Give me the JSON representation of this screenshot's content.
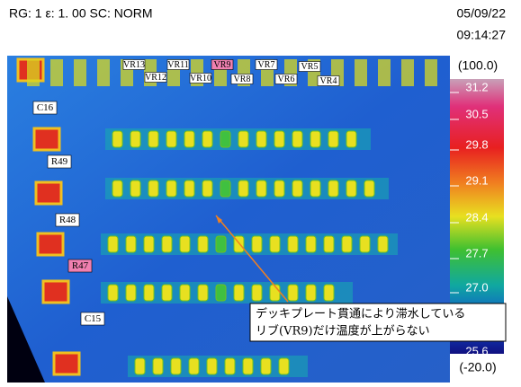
{
  "header": {
    "status": "RG: 1  ε: 1. 00  SC: NORM",
    "date": "05/09/22",
    "time": "09:14:27"
  },
  "scale": {
    "top": "(100.0)",
    "labels": [
      "31.2",
      "30.5",
      "29.8",
      "29.1",
      "28.4",
      "27.7",
      "27.0",
      "25.6"
    ],
    "bottom": "(-20.0)"
  },
  "image": {
    "labels": [
      "VR13",
      "VR11",
      "VR9",
      "VR7",
      "VR5",
      "VR12",
      "VR10",
      "VR8",
      "VR6",
      "VR4",
      "C16",
      "R49",
      "R48",
      "R47",
      "C15"
    ]
  },
  "callout": {
    "lines": [
      "デッキプレート貫通により滞水している",
      "リブ(VR9)だけ温度が上がらない"
    ]
  }
}
